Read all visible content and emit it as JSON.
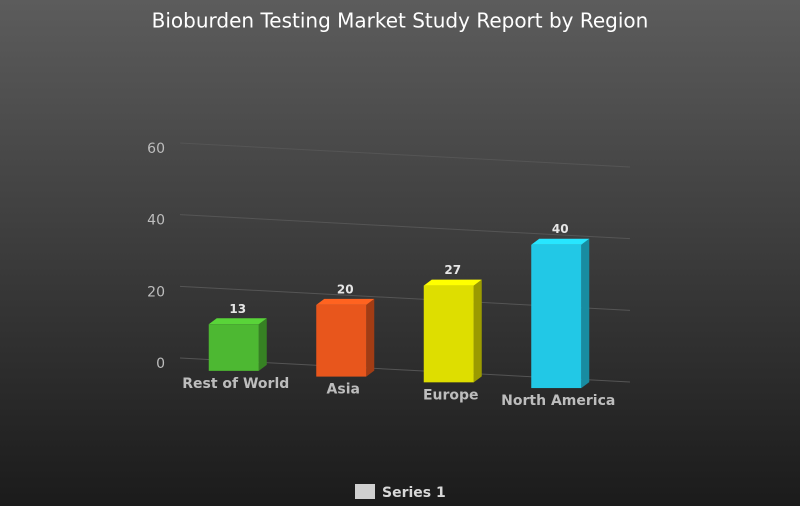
{
  "chart_data": {
    "type": "bar3d",
    "title": "Bioburden Testing Market Study Report by Region",
    "categories": [
      "Rest of World",
      "Asia",
      "Europe",
      "North America"
    ],
    "series": [
      {
        "name": "Series 1",
        "color": "#d0d0d0",
        "colors": [
          "#4db832",
          "#e8561c",
          "#dede00",
          "#22c8e6"
        ],
        "values": [
          13,
          20,
          27,
          40
        ]
      }
    ],
    "ylim": [
      0,
      60
    ],
    "yticks": [
      0,
      20,
      40,
      60
    ],
    "grid": true,
    "legend": "bottom"
  }
}
